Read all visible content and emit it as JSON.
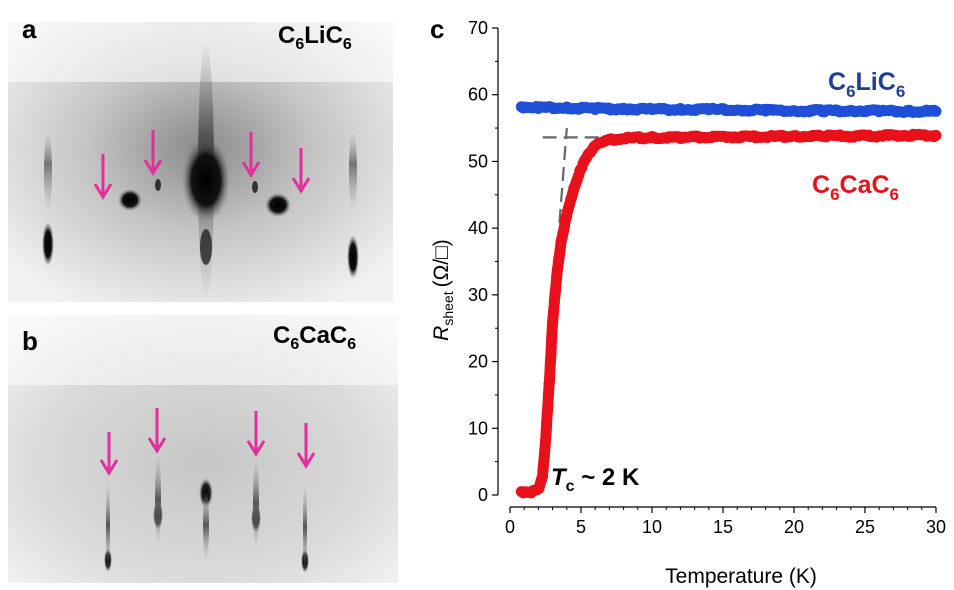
{
  "panels": {
    "a": {
      "letter": "a",
      "label": "C",
      "sub1": "6",
      "mid": "LiC",
      "sub2": "6"
    },
    "b": {
      "letter": "b",
      "label": "C",
      "sub1": "6",
      "mid": "CaC",
      "sub2": "6"
    },
    "c": {
      "letter": "c"
    }
  },
  "chart_data": {
    "type": "scatter",
    "xlabel": "Temperature (K)",
    "ylabel_main": "R",
    "ylabel_sub": "sheet",
    "ylabel_unit": "(Ω/□)",
    "xlim": [
      0,
      30
    ],
    "ylim": [
      0,
      70
    ],
    "x_ticks": [
      0,
      5,
      10,
      15,
      20,
      25,
      30
    ],
    "y_ticks": [
      0,
      10,
      20,
      30,
      40,
      50,
      60,
      70
    ],
    "annotation": {
      "main": "T",
      "sub": "c",
      "rest": " ~ 2 K"
    },
    "series": [
      {
        "name_parts": [
          "C",
          "6",
          "LiC",
          "6"
        ],
        "color": "#1f4fd6",
        "label_color": "#1f3f8f",
        "x": [
          0.8,
          2,
          4,
          6,
          8,
          10,
          12,
          14,
          16,
          18,
          20,
          22,
          24,
          26,
          28,
          30
        ],
        "y": [
          58.2,
          58.1,
          58.0,
          57.9,
          57.9,
          57.8,
          57.8,
          57.8,
          57.7,
          57.7,
          57.6,
          57.6,
          57.6,
          57.6,
          57.5,
          57.5
        ]
      },
      {
        "name_parts": [
          "C",
          "6",
          "CaC",
          "6"
        ],
        "color": "#e8101a",
        "label_color": "#e8101a",
        "x": [
          0.8,
          1.5,
          2.0,
          2.3,
          2.5,
          2.8,
          3.0,
          3.3,
          3.6,
          4.0,
          4.5,
          5.0,
          5.5,
          6.0,
          7.0,
          8.0,
          10,
          12,
          15,
          18,
          20,
          22,
          25,
          28,
          30
        ],
        "y": [
          0.5,
          0.5,
          0.8,
          3.0,
          8.0,
          18.0,
          26.0,
          33.0,
          38.0,
          42.0,
          46.0,
          49.0,
          51.0,
          52.5,
          53.2,
          53.5,
          53.6,
          53.6,
          53.7,
          53.7,
          53.8,
          53.8,
          53.8,
          53.9,
          53.9
        ]
      }
    ],
    "guides": [
      {
        "x": [
          2.0,
          4.0
        ],
        "y": [
          0,
          55
        ]
      },
      {
        "x": [
          2.3,
          30
        ],
        "y": [
          53.6,
          53.6
        ]
      }
    ],
    "markers_rgb": {
      "arrow": "#e0309a"
    }
  }
}
